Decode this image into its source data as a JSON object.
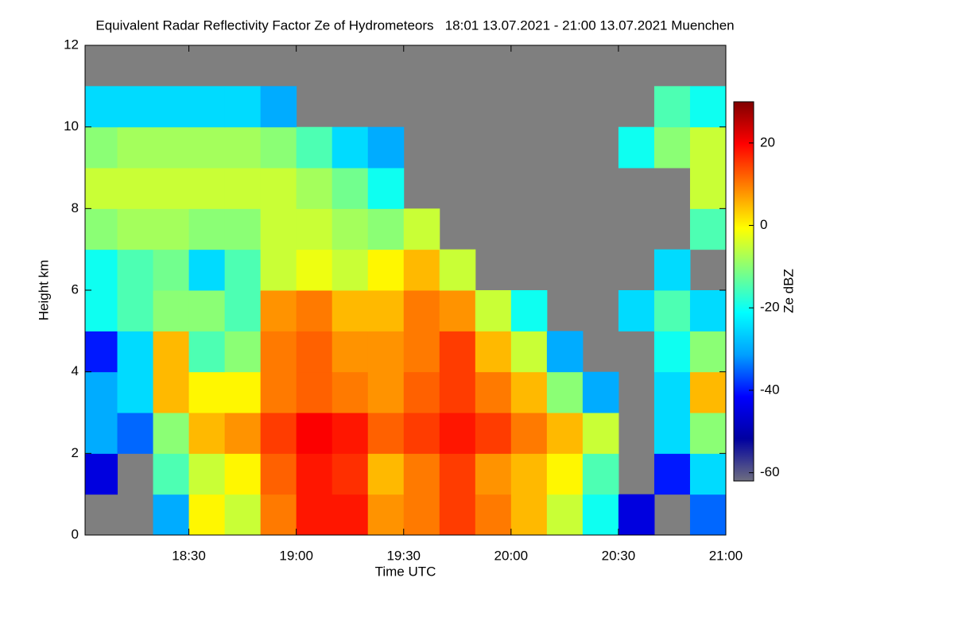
{
  "chart_data": {
    "type": "heatmap",
    "title": "Equivalent Radar Reflectivity Factor Ze of Hydrometeors   18:01 13.07.2021 - 21:00 13.07.2021 Muenchen",
    "x_label": "Time UTC",
    "y_label": "Height km",
    "colorbar_label": "Ze dBZ",
    "x": [
      1085,
      1095,
      1105,
      1115,
      1125,
      1135,
      1145,
      1155,
      1165,
      1175,
      1185,
      1195,
      1205,
      1215,
      1225,
      1235,
      1245,
      1255
    ],
    "y": [
      0.5,
      1.5,
      2.5,
      3.5,
      4.5,
      5.5,
      6.5,
      7.5,
      8.5,
      9.5,
      10.5,
      11.5
    ],
    "z": [
      [
        null,
        null,
        -30,
        0,
        -5,
        10,
        18,
        18,
        8,
        10,
        15,
        10,
        5,
        -5,
        -20,
        -45,
        null,
        -35
      ],
      [
        -45,
        null,
        -15,
        -5,
        0,
        12,
        18,
        16,
        5,
        10,
        15,
        8,
        5,
        0,
        -15,
        null,
        -40,
        -25
      ],
      [
        -30,
        -35,
        -10,
        5,
        8,
        15,
        20,
        18,
        12,
        15,
        18,
        15,
        10,
        5,
        -5,
        null,
        -25,
        -10
      ],
      [
        -30,
        -25,
        5,
        0,
        0,
        10,
        12,
        10,
        8,
        12,
        15,
        10,
        5,
        -10,
        -30,
        null,
        -25,
        5
      ],
      [
        -40,
        -25,
        5,
        -15,
        -10,
        10,
        12,
        8,
        8,
        10,
        15,
        5,
        -5,
        -30,
        null,
        null,
        -20,
        -10
      ],
      [
        -20,
        -15,
        -10,
        -10,
        -15,
        8,
        10,
        5,
        5,
        10,
        8,
        -5,
        -20,
        null,
        null,
        -25,
        -15,
        -25
      ],
      [
        -20,
        -15,
        -12,
        -25,
        -15,
        -5,
        -2,
        -5,
        0,
        5,
        -5,
        null,
        null,
        null,
        null,
        null,
        -25,
        null
      ],
      [
        -10,
        -8,
        -8,
        -10,
        -10,
        -5,
        -5,
        -8,
        -10,
        -5,
        null,
        null,
        null,
        null,
        null,
        null,
        null,
        -15
      ],
      [
        -5,
        -5,
        -5,
        -5,
        -5,
        -5,
        -8,
        -12,
        -20,
        null,
        null,
        null,
        null,
        null,
        null,
        null,
        null,
        -5
      ],
      [
        -10,
        -8,
        -8,
        -8,
        -8,
        -10,
        -15,
        -25,
        -30,
        null,
        null,
        null,
        null,
        null,
        null,
        -20,
        -10,
        -5
      ],
      [
        -25,
        -25,
        -25,
        -25,
        -25,
        -30,
        null,
        null,
        null,
        null,
        null,
        null,
        null,
        null,
        null,
        null,
        -15,
        -20
      ],
      [
        null,
        null,
        null,
        null,
        null,
        null,
        null,
        null,
        null,
        null,
        null,
        null,
        null,
        null,
        null,
        null,
        null,
        null
      ]
    ],
    "xlim": [
      1081,
      1260
    ],
    "ylim": [
      0,
      12
    ],
    "zlim": [
      -62,
      30
    ],
    "xticks": [
      {
        "value": 1110,
        "label": "18:30"
      },
      {
        "value": 1140,
        "label": "19:00"
      },
      {
        "value": 1170,
        "label": "19:30"
      },
      {
        "value": 1200,
        "label": "20:00"
      },
      {
        "value": 1230,
        "label": "20:30"
      },
      {
        "value": 1260,
        "label": "21:00"
      }
    ],
    "yticks": [
      0,
      2,
      4,
      6,
      8,
      10,
      12
    ],
    "zticks": [
      20,
      0,
      -20,
      -40,
      -60
    ],
    "colors": [
      "#6e6e80",
      "#0000a0",
      "#0000ff",
      "#00a0ff",
      "#00ffff",
      "#80ff80",
      "#ffff00",
      "#ff8000",
      "#ff0000",
      "#800000"
    ],
    "background": "#7f7f7f"
  }
}
